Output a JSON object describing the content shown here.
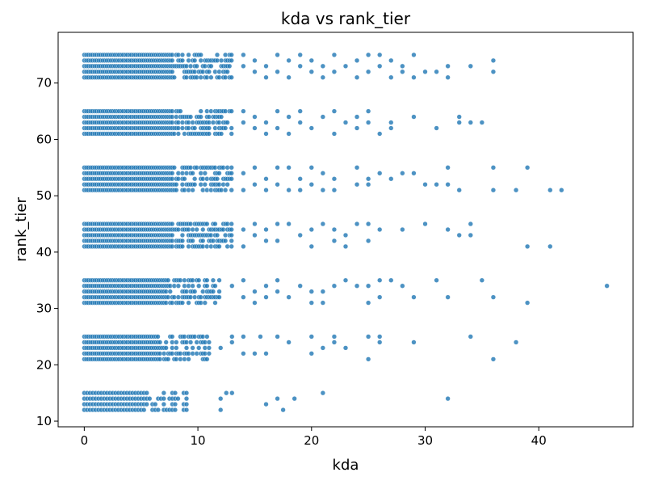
{
  "chart_data": {
    "type": "scatter",
    "title": "kda vs rank_tier",
    "xlabel": "kda",
    "ylabel": "rank_tier",
    "xlim": [
      -2.3,
      48.3
    ],
    "ylim": [
      9,
      79
    ],
    "xticks": [
      0,
      10,
      20,
      30,
      40
    ],
    "yticks": [
      10,
      20,
      30,
      40,
      50,
      60,
      70
    ],
    "grid": false,
    "legend": "none",
    "marker_color": "#1f77b4",
    "marker_edge": "#ffffff",
    "rank_levels": [
      11,
      12,
      13,
      14,
      15,
      21,
      22,
      23,
      24,
      25,
      31,
      32,
      33,
      34,
      35,
      41,
      42,
      43,
      44,
      45,
      51,
      52,
      53,
      54,
      55,
      61,
      62,
      63,
      64,
      65,
      71,
      72,
      73,
      74,
      75
    ],
    "dense_ranges": [
      {
        "y": [
          12,
          15
        ],
        "xmax": 9
      },
      {
        "y": [
          21,
          25
        ],
        "xmax": 11
      },
      {
        "y": [
          31,
          35
        ],
        "xmax": 12
      },
      {
        "y": [
          41,
          45
        ],
        "xmax": 13
      },
      {
        "y": [
          51,
          55
        ],
        "xmax": 13
      },
      {
        "y": [
          61,
          65
        ],
        "xmax": 13
      },
      {
        "y": [
          71,
          75
        ],
        "xmax": 13
      }
    ],
    "points": [
      [
        12,
        12
      ],
      [
        12,
        14
      ],
      [
        12.5,
        15
      ],
      [
        13,
        15
      ],
      [
        16,
        13
      ],
      [
        17,
        14
      ],
      [
        17.5,
        12
      ],
      [
        18.5,
        14
      ],
      [
        21,
        15
      ],
      [
        32,
        14
      ],
      [
        12,
        23
      ],
      [
        13,
        24
      ],
      [
        13,
        25
      ],
      [
        14,
        22
      ],
      [
        14,
        25
      ],
      [
        15,
        22
      ],
      [
        15.5,
        25
      ],
      [
        16,
        22
      ],
      [
        17,
        25
      ],
      [
        18,
        24
      ],
      [
        20,
        22
      ],
      [
        20,
        25
      ],
      [
        21,
        23
      ],
      [
        22,
        24
      ],
      [
        22,
        25
      ],
      [
        23,
        23
      ],
      [
        25,
        21
      ],
      [
        25,
        25
      ],
      [
        26,
        24
      ],
      [
        26,
        25
      ],
      [
        29,
        24
      ],
      [
        34,
        25
      ],
      [
        36,
        21
      ],
      [
        38,
        24
      ],
      [
        13,
        34
      ],
      [
        14,
        32
      ],
      [
        14,
        35
      ],
      [
        15,
        31
      ],
      [
        15,
        33
      ],
      [
        16,
        34
      ],
      [
        16,
        32
      ],
      [
        17,
        35
      ],
      [
        17,
        33
      ],
      [
        18,
        32
      ],
      [
        19,
        34
      ],
      [
        20,
        31
      ],
      [
        20,
        33
      ],
      [
        21,
        31
      ],
      [
        21,
        33
      ],
      [
        22,
        34
      ],
      [
        23,
        35
      ],
      [
        24,
        34
      ],
      [
        25,
        31
      ],
      [
        25,
        34
      ],
      [
        26,
        32
      ],
      [
        26,
        35
      ],
      [
        27,
        35
      ],
      [
        28,
        34
      ],
      [
        29,
        32
      ],
      [
        31,
        35
      ],
      [
        32,
        32
      ],
      [
        35,
        35
      ],
      [
        36,
        32
      ],
      [
        39,
        31
      ],
      [
        46,
        34
      ],
      [
        14,
        41
      ],
      [
        14,
        44
      ],
      [
        15,
        43
      ],
      [
        15,
        45
      ],
      [
        16,
        42
      ],
      [
        16,
        44
      ],
      [
        17,
        42
      ],
      [
        17,
        45
      ],
      [
        18,
        45
      ],
      [
        19,
        43
      ],
      [
        20,
        41
      ],
      [
        20,
        44
      ],
      [
        21,
        45
      ],
      [
        22,
        42
      ],
      [
        22,
        44
      ],
      [
        23,
        41
      ],
      [
        23,
        43
      ],
      [
        24,
        45
      ],
      [
        25,
        42
      ],
      [
        25,
        45
      ],
      [
        26,
        44
      ],
      [
        28,
        44
      ],
      [
        30,
        45
      ],
      [
        32,
        44
      ],
      [
        33,
        43
      ],
      [
        34,
        45
      ],
      [
        34,
        43
      ],
      [
        39,
        41
      ],
      [
        41,
        41
      ],
      [
        14,
        51
      ],
      [
        14,
        54
      ],
      [
        15,
        52
      ],
      [
        15,
        55
      ],
      [
        16,
        51
      ],
      [
        16,
        53
      ],
      [
        17,
        52
      ],
      [
        17,
        55
      ],
      [
        18,
        51
      ],
      [
        18,
        55
      ],
      [
        19,
        51
      ],
      [
        19,
        53
      ],
      [
        20,
        52
      ],
      [
        20,
        55
      ],
      [
        21,
        51
      ],
      [
        21,
        54
      ],
      [
        22,
        51
      ],
      [
        22,
        53
      ],
      [
        24,
        52
      ],
      [
        24,
        55
      ],
      [
        25,
        52
      ],
      [
        25,
        53
      ],
      [
        26,
        54
      ],
      [
        27,
        53
      ],
      [
        28,
        54
      ],
      [
        29,
        54
      ],
      [
        30,
        52
      ],
      [
        31,
        52
      ],
      [
        32,
        52
      ],
      [
        32,
        55
      ],
      [
        33,
        51
      ],
      [
        36,
        55
      ],
      [
        36,
        51
      ],
      [
        38,
        51
      ],
      [
        39,
        55
      ],
      [
        41,
        51
      ],
      [
        42,
        51
      ],
      [
        14,
        63
      ],
      [
        14,
        65
      ],
      [
        15,
        62
      ],
      [
        15,
        64
      ],
      [
        16,
        61
      ],
      [
        16,
        63
      ],
      [
        17,
        62
      ],
      [
        17,
        65
      ],
      [
        18,
        61
      ],
      [
        18,
        64
      ],
      [
        19,
        63
      ],
      [
        19,
        65
      ],
      [
        20,
        62
      ],
      [
        21,
        64
      ],
      [
        22,
        61
      ],
      [
        22,
        65
      ],
      [
        23,
        63
      ],
      [
        24,
        62
      ],
      [
        24,
        64
      ],
      [
        25,
        63
      ],
      [
        25,
        65
      ],
      [
        26,
        61
      ],
      [
        27,
        62
      ],
      [
        27,
        63
      ],
      [
        29,
        64
      ],
      [
        31,
        62
      ],
      [
        33,
        64
      ],
      [
        33,
        63
      ],
      [
        34,
        63
      ],
      [
        35,
        63
      ],
      [
        14,
        73
      ],
      [
        14,
        75
      ],
      [
        15,
        72
      ],
      [
        15,
        74
      ],
      [
        16,
        71
      ],
      [
        16,
        73
      ],
      [
        17,
        75
      ],
      [
        17,
        72
      ],
      [
        18,
        74
      ],
      [
        18,
        71
      ],
      [
        19,
        73
      ],
      [
        19,
        75
      ],
      [
        20,
        72
      ],
      [
        20,
        74
      ],
      [
        21,
        71
      ],
      [
        21,
        73
      ],
      [
        22,
        72
      ],
      [
        22,
        75
      ],
      [
        23,
        73
      ],
      [
        24,
        71
      ],
      [
        24,
        74
      ],
      [
        25,
        72
      ],
      [
        25,
        75
      ],
      [
        26,
        73
      ],
      [
        26,
        75
      ],
      [
        27,
        74
      ],
      [
        27,
        71
      ],
      [
        28,
        72
      ],
      [
        28,
        73
      ],
      [
        29,
        75
      ],
      [
        29,
        71
      ],
      [
        30,
        72
      ],
      [
        31,
        72
      ],
      [
        32,
        73
      ],
      [
        32,
        71
      ],
      [
        34,
        73
      ],
      [
        36,
        74
      ],
      [
        36,
        72
      ]
    ]
  }
}
